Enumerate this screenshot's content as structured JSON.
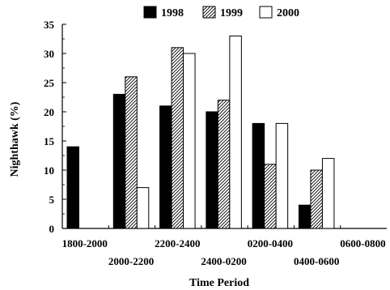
{
  "chart_data": {
    "type": "bar",
    "categories": [
      "1800-2000",
      "2000-2200",
      "2200-2400",
      "2400-0200",
      "0200-0400",
      "0400-0600",
      "0600-0800"
    ],
    "series": [
      {
        "name": "1998",
        "values": [
          14,
          23,
          21,
          20,
          18,
          4,
          0
        ],
        "fill": "solid"
      },
      {
        "name": "1999",
        "values": [
          0,
          26,
          31,
          22,
          11,
          10,
          0
        ],
        "fill": "hatched"
      },
      {
        "name": "2000",
        "values": [
          0,
          7,
          30,
          33,
          18,
          12,
          0
        ],
        "fill": "white"
      }
    ],
    "xlabel": "Time Period",
    "ylabel": "Nighthawk (%)",
    "ylim": [
      0,
      35
    ],
    "yticks": [
      0,
      5,
      10,
      15,
      20,
      25,
      30,
      35
    ],
    "legend_position": "top",
    "grid": false,
    "colors": {
      "bar_edge": "#000000",
      "solid": "#000000",
      "background": "#ffffff"
    }
  }
}
